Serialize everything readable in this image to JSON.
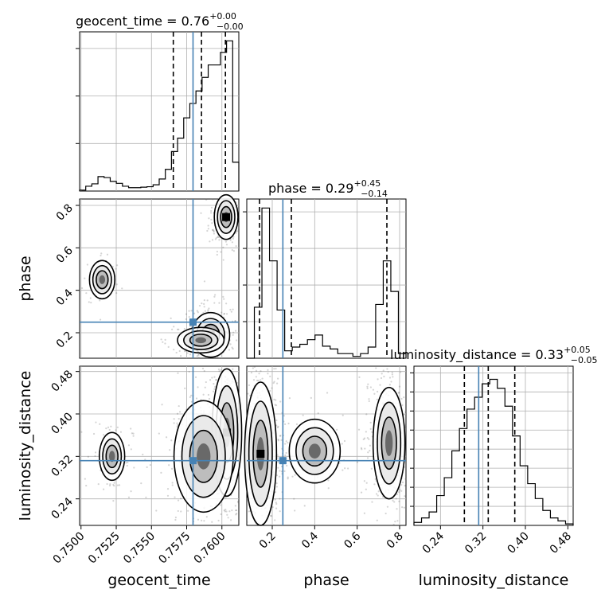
{
  "chart_data": {
    "type": "corner",
    "parameters": [
      "geocent_time",
      "phase",
      "luminosity_distance"
    ],
    "axis_labels": {
      "geocent_time": "geocent_time",
      "phase": "phase",
      "luminosity_distance": "luminosity_distance"
    },
    "ranges": {
      "geocent_time": [
        0.7499,
        0.7612
      ],
      "phase": [
        0.08,
        0.83
      ],
      "luminosity_distance": [
        0.19,
        0.49
      ]
    },
    "ticks": {
      "geocent_time": {
        "values": [
          0.75,
          0.7525,
          0.755,
          0.7575,
          0.76
        ],
        "labels": [
          "0.7500",
          "0.7525",
          "0.7550",
          "0.7575",
          "0.7600"
        ]
      },
      "phase_x": {
        "values": [
          0.2,
          0.4,
          0.6,
          0.8
        ],
        "labels": [
          "0.2",
          "0.4",
          "0.6",
          "0.8"
        ]
      },
      "phase_y": {
        "values": [
          0.2,
          0.4,
          0.6,
          0.8
        ],
        "labels": [
          "0.2",
          "0.4",
          "0.6",
          "0.8"
        ]
      },
      "luminosity_distance_x": {
        "values": [
          0.24,
          0.32,
          0.4,
          0.48
        ],
        "labels": [
          "0.24",
          "0.32",
          "0.40",
          "0.48"
        ]
      },
      "luminosity_distance_y": {
        "values": [
          0.24,
          0.32,
          0.4,
          0.48
        ],
        "labels": [
          "0.24",
          "0.32",
          "0.40",
          "0.48"
        ]
      }
    },
    "truths": {
      "geocent_time": 0.75795,
      "phase": 0.25,
      "luminosity_distance": 0.312
    },
    "titles": {
      "geocent_time": {
        "name": "geocent_time",
        "value": "0.76",
        "plus": "+0.00",
        "minus": "−0.00"
      },
      "phase": {
        "name": "phase",
        "value": "0.29",
        "plus": "+0.45",
        "minus": "−0.14"
      },
      "luminosity_distance": {
        "name": "luminosity_distance",
        "value": "0.33",
        "plus": "+0.05",
        "minus": "−0.05"
      }
    },
    "quantiles": {
      "geocent_time": [
        0.75655,
        0.75855,
        0.76025
      ],
      "phase": [
        0.14,
        0.29,
        0.74
      ],
      "luminosity_distance": [
        0.285,
        0.33,
        0.38
      ]
    },
    "histograms": {
      "geocent_time": {
        "edges_range": [
          0.7499,
          0.7612
        ],
        "counts": [
          0.02,
          0.1,
          0.15,
          0.3,
          0.28,
          0.2,
          0.16,
          0.1,
          0.07,
          0.07,
          0.08,
          0.09,
          0.13,
          0.25,
          0.45,
          0.82,
          1.1,
          1.52,
          1.82,
          2.08,
          2.36,
          2.62,
          2.62,
          2.88,
          3.12,
          0.6
        ]
      },
      "phase": {
        "edges_range": [
          0.08,
          0.83
        ],
        "counts": [
          0,
          0.55,
          1.62,
          1.05,
          0.52,
          0.08,
          0.12,
          0.15,
          0.2,
          0.25,
          0.13,
          0.1,
          0.05,
          0.05,
          0.02,
          0.05,
          0.12,
          0.58,
          1.05,
          0.72,
          0.05
        ]
      },
      "luminosity_distance": {
        "edges_range": [
          0.19,
          0.49
        ],
        "counts": [
          0.02,
          0.05,
          0.09,
          0.2,
          0.32,
          0.5,
          0.65,
          0.78,
          0.86,
          0.95,
          0.98,
          0.92,
          0.8,
          0.6,
          0.4,
          0.28,
          0.18,
          0.1,
          0.05,
          0.03,
          0.01
        ]
      }
    },
    "density_blobs": {
      "phase_vs_geocent_time": [
        {
          "x": 0.7603,
          "y": 0.745,
          "sx": 0.00028,
          "sy": 0.035,
          "w": 1.0
        },
        {
          "x": 0.7592,
          "y": 0.19,
          "sx": 0.00045,
          "sy": 0.035,
          "w": 0.9
        },
        {
          "x": 0.7585,
          "y": 0.165,
          "sx": 0.00055,
          "sy": 0.02,
          "w": 0.6
        },
        {
          "x": 0.7515,
          "y": 0.45,
          "sx": 0.0003,
          "sy": 0.03,
          "w": 0.3
        }
      ],
      "luminosity_distance_vs_geocent_time": [
        {
          "x": 0.76035,
          "y": 0.365,
          "sx": 0.00035,
          "sy": 0.04,
          "w": 1.0
        },
        {
          "x": 0.7587,
          "y": 0.32,
          "sx": 0.0007,
          "sy": 0.035,
          "w": 0.7
        },
        {
          "x": 0.7522,
          "y": 0.32,
          "sx": 0.0003,
          "sy": 0.015,
          "w": 0.25
        }
      ],
      "luminosity_distance_vs_phase": [
        {
          "x": 0.145,
          "y": 0.325,
          "sx": 0.025,
          "sy": 0.045,
          "w": 1.0
        },
        {
          "x": 0.75,
          "y": 0.345,
          "sx": 0.025,
          "sy": 0.035,
          "w": 0.75
        },
        {
          "x": 0.4,
          "y": 0.33,
          "sx": 0.04,
          "sy": 0.02,
          "w": 0.15
        }
      ]
    }
  }
}
